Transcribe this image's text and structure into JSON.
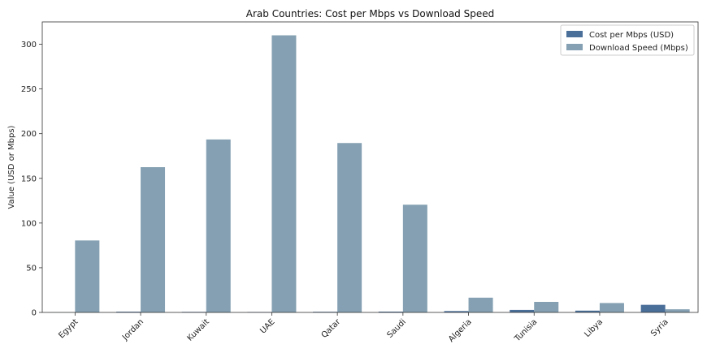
{
  "chart_data": {
    "type": "bar",
    "title": "Arab Countries: Cost per Mbps vs Download Speed",
    "xlabel": "",
    "ylabel": "Value (USD or Mbps)",
    "categories": [
      "Egypt",
      "Jordan",
      "Kuwait",
      "UAE",
      "Qatar",
      "Saudi",
      "Algeria",
      "Tunisia",
      "Libya",
      "Syria"
    ],
    "series": [
      {
        "name": "Cost per Mbps (USD)",
        "color": "#4a6f99",
        "values": [
          0.1,
          0.8,
          0.6,
          0.5,
          0.7,
          0.9,
          1.5,
          2.8,
          2.0,
          8.5
        ]
      },
      {
        "name": "Download Speed (Mbps)",
        "color": "#84a0b2",
        "values": [
          80.5,
          162.5,
          193.5,
          310.0,
          189.5,
          120.5,
          16.5,
          11.8,
          10.5,
          3.5
        ]
      }
    ],
    "ylim": [
      0,
      325
    ],
    "yticks": [
      0,
      50,
      100,
      150,
      200,
      250,
      300
    ],
    "grid": false,
    "legend_position": "top-right"
  }
}
